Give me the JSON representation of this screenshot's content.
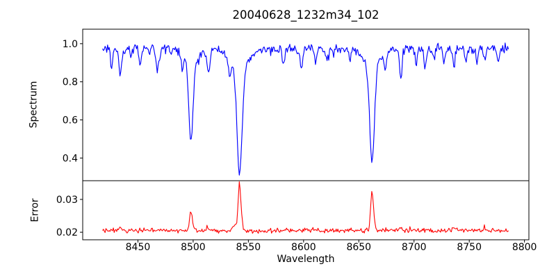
{
  "chart_data": [
    {
      "type": "line",
      "name": "spectrum-panel",
      "title": "20040628_1232m34_102",
      "xlabel": "Wavelength",
      "ylabel": "Spectrum",
      "line_color": "#0000ff",
      "grid": false,
      "legend": null,
      "xlim": [
        8400,
        8804
      ],
      "ylim": [
        0.281,
        1.076
      ],
      "xticks": {
        "values": [
          8450,
          8500,
          8550,
          8600,
          8650,
          8700,
          8750,
          8800
        ],
        "labels": [
          "8450",
          "8500",
          "8550",
          "8600",
          "8650",
          "8700",
          "8750",
          "8800"
        ]
      },
      "yticks": {
        "values": [
          0.4,
          0.6,
          0.8,
          1.0
        ],
        "labels": [
          "0.4",
          "0.6",
          "0.8",
          "1.0"
        ]
      },
      "x_start": 8418,
      "x_end": 8786,
      "x_step": 0.75,
      "continuum": 0.975,
      "noise_sigma": 0.011,
      "absorption_lines": [
        {
          "center": 8426,
          "depth": 0.09,
          "width": 1.0
        },
        {
          "center": 8434,
          "depth": 0.13,
          "width": 1.4
        },
        {
          "center": 8444,
          "depth": 0.05,
          "width": 1.0
        },
        {
          "center": 8452,
          "depth": 0.07,
          "width": 1.0
        },
        {
          "center": 8468,
          "depth": 0.11,
          "width": 1.4
        },
        {
          "center": 8490,
          "depth": 0.07,
          "width": 1.0
        },
        {
          "center": 8498,
          "depth": 0.42,
          "width": 1.9,
          "wing_depth": 0.075,
          "wing_width": 6.5
        },
        {
          "center": 8514,
          "depth": 0.12,
          "width": 1.4
        },
        {
          "center": 8533,
          "depth": 0.09,
          "width": 1.1
        },
        {
          "center": 8542,
          "depth": 0.55,
          "width": 2.3,
          "wing_depth": 0.11,
          "wing_width": 8
        },
        {
          "center": 8582,
          "depth": 0.08,
          "width": 1.1
        },
        {
          "center": 8598,
          "depth": 0.09,
          "width": 1.2
        },
        {
          "center": 8611,
          "depth": 0.07,
          "width": 1.0
        },
        {
          "center": 8621,
          "depth": 0.07,
          "width": 1.0
        },
        {
          "center": 8642,
          "depth": 0.06,
          "width": 1.0
        },
        {
          "center": 8662,
          "depth": 0.5,
          "width": 2.1,
          "wing_depth": 0.095,
          "wing_width": 7.5
        },
        {
          "center": 8674,
          "depth": 0.1,
          "width": 1.0
        },
        {
          "center": 8688,
          "depth": 0.16,
          "width": 1.2
        },
        {
          "center": 8702,
          "depth": 0.07,
          "width": 1.0
        },
        {
          "center": 8710,
          "depth": 0.09,
          "width": 1.1
        },
        {
          "center": 8718,
          "depth": 0.06,
          "width": 1.0
        },
        {
          "center": 8727,
          "depth": 0.07,
          "width": 1.0
        },
        {
          "center": 8736,
          "depth": 0.09,
          "width": 1.1
        },
        {
          "center": 8747,
          "depth": 0.07,
          "width": 1.0
        },
        {
          "center": 8757,
          "depth": 0.08,
          "width": 1.0
        },
        {
          "center": 8764,
          "depth": 0.07,
          "width": 1.0
        },
        {
          "center": 8776,
          "depth": 0.06,
          "width": 1.0
        }
      ]
    },
    {
      "type": "line",
      "name": "error-panel",
      "ylabel": "Error",
      "line_color": "#ff0000",
      "grid": false,
      "legend": null,
      "xlim": [
        8400,
        8804
      ],
      "ylim": [
        0.0177,
        0.0357
      ],
      "yticks": {
        "values": [
          0.02,
          0.03
        ],
        "labels": [
          "0.02",
          "0.03"
        ]
      },
      "x_start": 8418,
      "x_end": 8786,
      "x_step": 0.75,
      "baseline": 0.0205,
      "noise_sigma": 0.00035,
      "peaks": [
        {
          "center": 8434,
          "height": 0.0008,
          "width": 1.5
        },
        {
          "center": 8468,
          "height": 0.0006,
          "width": 1.5
        },
        {
          "center": 8498,
          "height": 0.006,
          "width": 1.3
        },
        {
          "center": 8514,
          "height": 0.001,
          "width": 1.4
        },
        {
          "center": 8537,
          "height": 0.0015,
          "width": 2.0
        },
        {
          "center": 8542,
          "height": 0.0145,
          "width": 1.3
        },
        {
          "center": 8662,
          "height": 0.0122,
          "width": 1.3
        },
        {
          "center": 8688,
          "height": 0.0012,
          "width": 1.2
        },
        {
          "center": 8736,
          "height": 0.0008,
          "width": 1.2
        },
        {
          "center": 8764,
          "height": 0.001,
          "width": 1.2
        }
      ]
    }
  ]
}
